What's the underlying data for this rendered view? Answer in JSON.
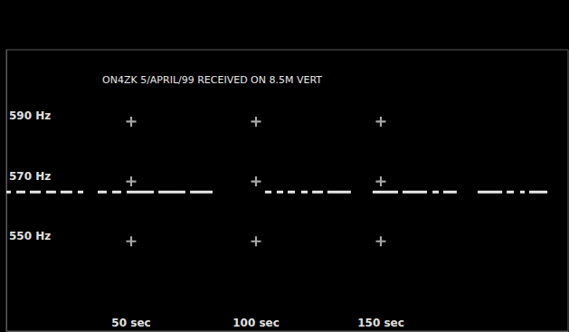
{
  "chart_data": {
    "type": "line",
    "title": "ON4ZK 5/APRIL/99 RECEIVED ON 8.5M VERT",
    "x": [
      0,
      1.8,
      1.8,
      4.0,
      7.6,
      7.6,
      9.4,
      13.8,
      13.8,
      15.9,
      19.9,
      19.9,
      21.7,
      26.4,
      26.4,
      28.6,
      30.8,
      30.8,
      36.6,
      40.2,
      40.2,
      42.4,
      46.0,
      46.0,
      48.2,
      59.1,
      59.1,
      60.9,
      71.7,
      71.7,
      73.6,
      82.6,
      82.6,
      103.6,
      106.2,
      106.2,
      108.3,
      110.9,
      110.9,
      112.7,
      115.6,
      115.6,
      118.1,
      120.7,
      120.7,
      122.5,
      126.8,
      126.8,
      128.6,
      138.0,
      138.0,
      146.7,
      156.9,
      156.9,
      158.7,
      168.5,
      168.5,
      170.7,
      173.2,
      173.2,
      175.0,
      180.4,
      180.4,
      188.8,
      198.6,
      198.6,
      200.4,
      203.3,
      203.3,
      205.8,
      207.6,
      207.6,
      209.4,
      216.7
    ],
    "values": [
      566.5,
      566.5,
      null,
      566.5,
      566.5,
      null,
      566.5,
      566.5,
      null,
      566.5,
      566.5,
      null,
      566.5,
      566.5,
      null,
      566.5,
      566.5,
      null,
      566.5,
      566.5,
      null,
      566.5,
      566.5,
      null,
      566.5,
      566.5,
      null,
      566.5,
      566.5,
      null,
      566.5,
      566.5,
      null,
      566.5,
      566.5,
      null,
      566.5,
      566.5,
      null,
      566.5,
      566.5,
      null,
      566.5,
      566.5,
      null,
      566.5,
      566.5,
      null,
      566.5,
      566.5,
      null,
      566.5,
      566.5,
      null,
      566.5,
      566.5,
      null,
      566.5,
      566.5,
      null,
      566.5,
      566.5,
      null,
      566.5,
      566.5,
      null,
      566.5,
      566.5,
      null,
      566.5,
      566.5,
      null,
      566.5,
      566.5
    ],
    "color": "#e8e8e8",
    "xlim": [
      0,
      225
    ],
    "ylim": [
      520,
      614
    ],
    "xticks": [
      {
        "value": 50,
        "label": "50 sec"
      },
      {
        "value": 100,
        "label": "100 sec"
      },
      {
        "value": 150,
        "label": "150 sec"
      }
    ],
    "yticks": [
      {
        "value": 550,
        "label": "550 Hz"
      },
      {
        "value": 570,
        "label": "570 Hz"
      },
      {
        "value": 590,
        "label": "590 Hz"
      }
    ],
    "grid": true
  }
}
